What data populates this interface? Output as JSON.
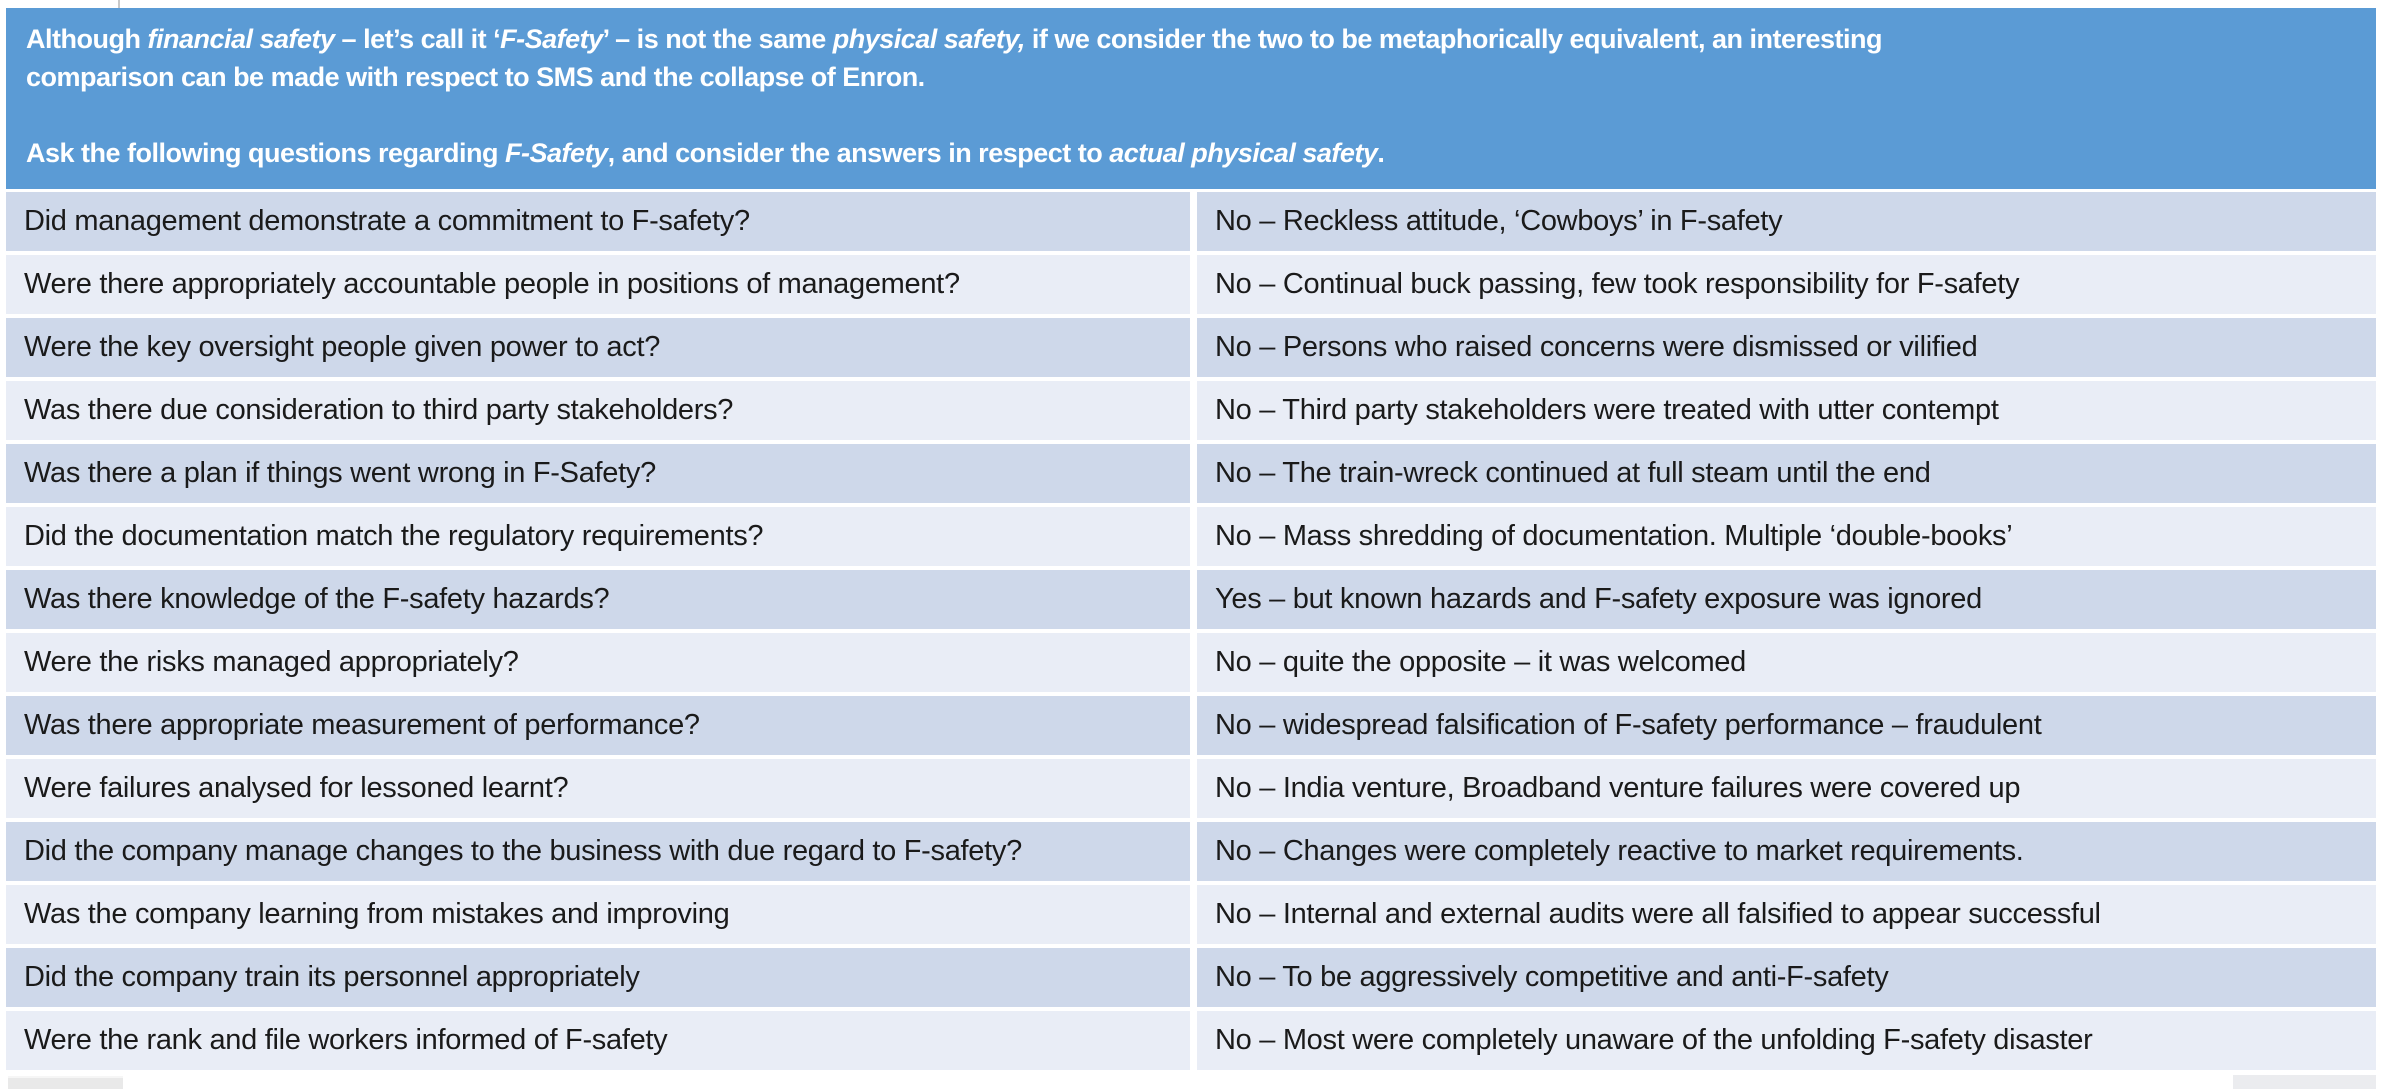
{
  "page": {
    "background": "#FFFFFF"
  },
  "header": {
    "bg_color": "#5B9BD5",
    "text_color": "#FFFFFF",
    "lines": [
      {
        "segments": [
          {
            "text": "Although ",
            "italic": false
          },
          {
            "text": "financial safety",
            "italic": true
          },
          {
            "text": " – let’s call it ‘",
            "italic": false
          },
          {
            "text": "F-Safety",
            "italic": true
          },
          {
            "text": "’ – is not the same ",
            "italic": false
          },
          {
            "text": "physical safety,",
            "italic": true
          },
          {
            "text": " if we consider the two to be metaphorically equivalent, an interesting",
            "italic": false
          }
        ]
      },
      {
        "segments": [
          {
            "text": "comparison can be made with respect to SMS and the collapse of Enron.",
            "italic": false
          }
        ]
      },
      {
        "segments": []
      },
      {
        "segments": [
          {
            "text": "Ask the following questions regarding ",
            "italic": false
          },
          {
            "text": "F-Safety",
            "italic": true
          },
          {
            "text": ", and consider the answers in respect to ",
            "italic": false
          },
          {
            "text": "actual physical safety",
            "italic": true
          },
          {
            "text": ".",
            "italic": false
          }
        ]
      }
    ]
  },
  "table": {
    "row_colors": {
      "odd": "#CED8EA",
      "even": "#E9EDF6"
    },
    "text_color": "#1A1A1A",
    "rows": [
      {
        "question": "Did management demonstrate a commitment to F-safety?",
        "answer": "No – Reckless attitude, ‘Cowboys’ in F-safety"
      },
      {
        "question": "Were there appropriately accountable people in positions of management?",
        "answer": "No – Continual buck passing, few took responsibility for F-safety"
      },
      {
        "question": "Were the key oversight people given power to act?",
        "answer": "No – Persons who raised concerns were dismissed or vilified"
      },
      {
        "question": "Was there due consideration to third party stakeholders?",
        "answer": "No – Third party stakeholders were treated with utter contempt"
      },
      {
        "question": "Was there a plan if things went wrong in F-Safety?",
        "answer": "No – The train-wreck continued at full steam until the end"
      },
      {
        "question": "Did the documentation match the regulatory requirements?",
        "answer": "No – Mass shredding of documentation. Multiple ‘double-books’"
      },
      {
        "question": "Was there knowledge of the F-safety hazards?",
        "answer": "Yes – but known hazards and F-safety exposure was ignored"
      },
      {
        "question": "Were the risks managed appropriately?",
        "answer": "No – quite the opposite – it was welcomed"
      },
      {
        "question": "Was there appropriate measurement of performance?",
        "answer": "No – widespread falsification of F-safety performance – fraudulent"
      },
      {
        "question": "Were failures analysed for lessoned learnt?",
        "answer": "No – India venture, Broadband venture failures were covered up"
      },
      {
        "question": "Did the company manage changes to the business with due regard to F-safety?",
        "answer": "No – Changes were completely reactive to market requirements."
      },
      {
        "question": "Was the company learning from mistakes and improving",
        "answer": "No – Internal and external audits were all falsified to appear successful"
      },
      {
        "question": "Did the company train its personnel appropriately",
        "answer": "No – To be aggressively competitive and anti-F-safety"
      },
      {
        "question": "Were the rank and file workers informed of F-safety",
        "answer": "No – Most were completely unaware of the unfolding F-safety disaster"
      }
    ]
  }
}
